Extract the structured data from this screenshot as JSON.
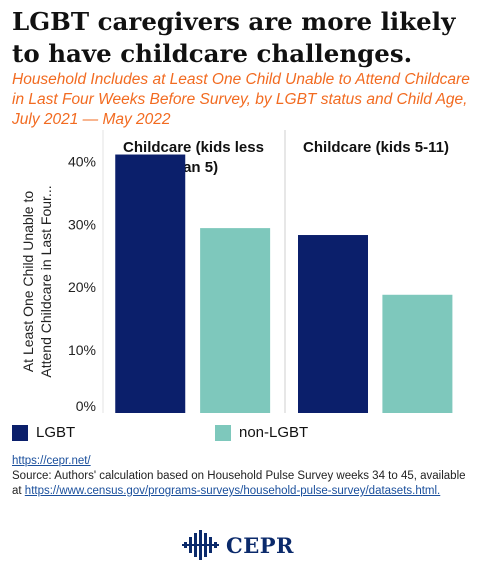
{
  "header": {
    "title": "LGBT caregivers are more likely to have childcare challenges.",
    "subtitle": "Household Includes at Least One Child Unable to Attend Childcare in Last Four Weeks Before Survey, by LGBT status and Child Age, July 2021 — May 2022"
  },
  "chart_data": {
    "type": "bar",
    "ylabel": "At Least One Child Unable to Attend Childcare in Last Four...",
    "ylim": [
      0,
      0.45
    ],
    "yticks": [
      {
        "value": 0,
        "label": "0%"
      },
      {
        "value": 0.1,
        "label": "10%"
      },
      {
        "value": 0.2,
        "label": "20%"
      },
      {
        "value": 0.3,
        "label": "30%"
      },
      {
        "value": 0.4,
        "label": "40%"
      }
    ],
    "panels": [
      {
        "label_lines": [
          "Childcare (kids less",
          "than 5)"
        ]
      },
      {
        "label_lines": [
          "Childcare (kids 5-11)"
        ]
      }
    ],
    "series": [
      {
        "name": "LGBT",
        "color": "#0b1f6b",
        "values": [
          0.411,
          0.283
        ]
      },
      {
        "name": "non-LGBT",
        "color": "#7ec8bc",
        "values": [
          0.294,
          0.188
        ]
      }
    ],
    "grid": false,
    "legend_position": "bottom"
  },
  "footer": {
    "link": "https://cepr.net/",
    "source_text": "Source: Authors' calculation based on Household Pulse Survey weeks 34 to 45, available at ",
    "source_link": "https://www.census.gov/programs-surveys/household-pulse-survey/datasets.html."
  },
  "logo": {
    "text": "CEPR",
    "icon": "cepr-logo-icon",
    "color": "#0b2a6b"
  }
}
